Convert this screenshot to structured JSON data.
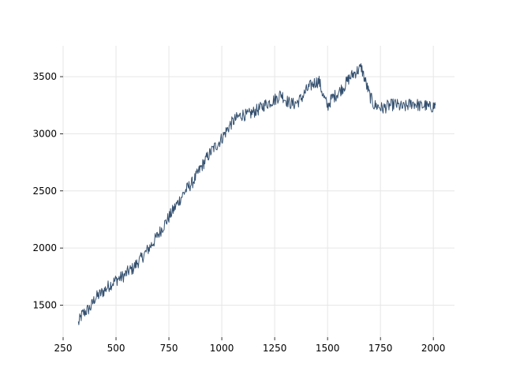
{
  "chart_data": {
    "type": "line",
    "title": "",
    "xlabel": "",
    "ylabel": "",
    "xlim": [
      250,
      2100
    ],
    "ylim": [
      1220,
      3770
    ],
    "grid": true,
    "x_ticks": [
      250,
      500,
      750,
      1000,
      1250,
      1500,
      1750,
      2000
    ],
    "y_ticks": [
      1500,
      2000,
      2500,
      3000,
      3500
    ],
    "x_tick_labels": [
      "250",
      "500",
      "750",
      "1000",
      "1250",
      "1500",
      "1750",
      "2000"
    ],
    "y_tick_labels": [
      "1500",
      "2000",
      "2500",
      "3000",
      "3500"
    ],
    "colors": {
      "line": "#34506f",
      "grid": "#e6e6e6"
    },
    "series": [
      {
        "x": [
          322,
          340,
          360,
          380,
          400,
          420,
          440,
          460,
          480,
          500,
          520,
          540,
          560,
          580,
          600,
          620,
          640,
          660,
          680,
          700,
          720,
          740,
          760,
          780,
          800,
          820,
          840,
          860,
          880,
          900,
          920,
          940,
          960,
          980,
          1000,
          1020,
          1040,
          1060,
          1080,
          1100,
          1120,
          1140,
          1160,
          1180,
          1200,
          1220,
          1240,
          1260,
          1280,
          1300,
          1320,
          1340,
          1360,
          1380,
          1400,
          1420,
          1440,
          1460,
          1480,
          1500,
          1520,
          1540,
          1560,
          1580,
          1600,
          1620,
          1640,
          1660,
          1680,
          1700,
          1720,
          1740,
          1760,
          1780,
          1800,
          1820,
          1840,
          1860,
          1880,
          1900,
          1920,
          1940,
          1960,
          1980,
          2000,
          2010
        ],
        "y": [
          1340,
          1420,
          1450,
          1480,
          1560,
          1590,
          1620,
          1660,
          1690,
          1720,
          1740,
          1760,
          1800,
          1820,
          1870,
          1910,
          1960,
          2010,
          2060,
          2120,
          2180,
          2240,
          2300,
          2360,
          2420,
          2480,
          2530,
          2570,
          2630,
          2700,
          2760,
          2820,
          2870,
          2910,
          2960,
          3020,
          3080,
          3120,
          3150,
          3170,
          3160,
          3180,
          3200,
          3220,
          3250,
          3270,
          3290,
          3310,
          3350,
          3300,
          3270,
          3260,
          3280,
          3320,
          3380,
          3420,
          3450,
          3460,
          3330,
          3240,
          3310,
          3340,
          3380,
          3420,
          3480,
          3520,
          3550,
          3580,
          3450,
          3330,
          3250,
          3240,
          3220,
          3240,
          3250,
          3260,
          3240,
          3230,
          3250,
          3270,
          3260,
          3240,
          3250,
          3230,
          3240,
          3250
        ]
      }
    ]
  }
}
